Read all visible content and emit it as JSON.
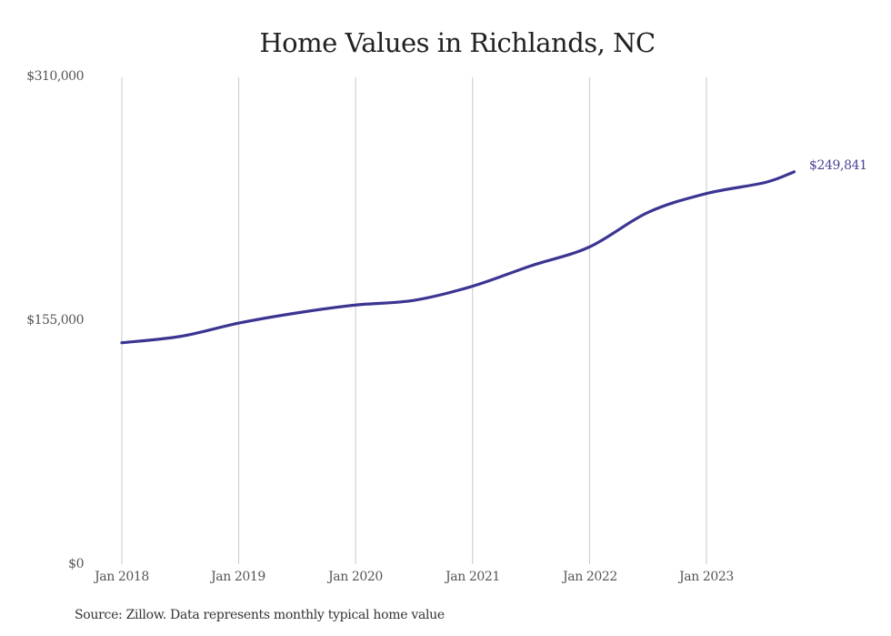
{
  "chart_data": {
    "type": "line",
    "title": "Home Values in Richlands, NC",
    "xlabel": "",
    "ylabel": "",
    "y_ticks": [
      "$0",
      "$155,000",
      "$310,000"
    ],
    "ylim": [
      0,
      310000
    ],
    "x_ticks": [
      "Jan 2018",
      "Jan 2019",
      "Jan 2020",
      "Jan 2021",
      "Jan 2022",
      "Jan 2023"
    ],
    "grid": "vertical",
    "legend": "none",
    "series": [
      {
        "name": "Typical home value",
        "color": "#3b3592",
        "x": [
          "2018-01",
          "2018-07",
          "2019-01",
          "2019-07",
          "2020-01",
          "2020-07",
          "2021-01",
          "2021-07",
          "2022-01",
          "2022-07",
          "2023-01",
          "2023-07",
          "2023-10"
        ],
        "values": [
          141000,
          145000,
          153500,
          160000,
          165000,
          168000,
          177000,
          190000,
          202000,
          224000,
          236000,
          243000,
          249841
        ]
      }
    ],
    "annotations": [
      {
        "text": "$249,841",
        "at": "2023-10"
      }
    ],
    "source": "Source: Zillow. Data represents monthly typical home value"
  },
  "header": {
    "title": "Home Values in Richlands, NC"
  },
  "axes": {
    "y": {
      "top": "$310,000",
      "mid": "$155,000",
      "bottom": "$0"
    },
    "x": [
      "Jan 2018",
      "Jan 2019",
      "Jan 2020",
      "Jan 2021",
      "Jan 2022",
      "Jan 2023"
    ]
  },
  "end_label": "$249,841",
  "footer": {
    "source": "Source: Zillow. Data represents monthly typical home value"
  },
  "colors": {
    "line": "#3b3592",
    "label": "#4a4596",
    "grid": "#c8c8c8"
  }
}
